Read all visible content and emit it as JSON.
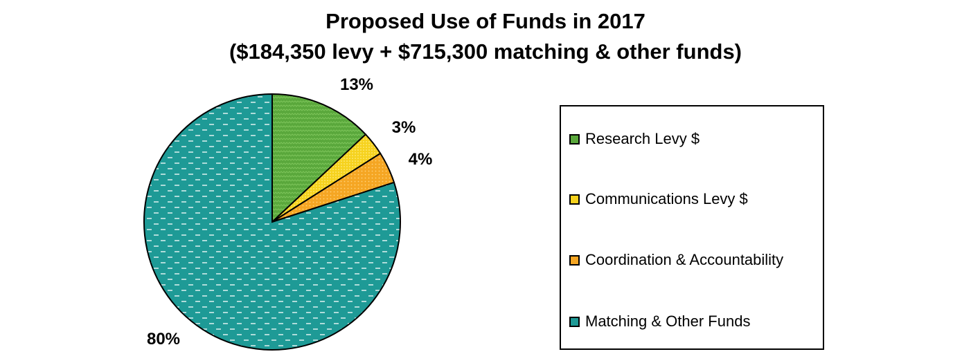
{
  "chart_data": {
    "type": "pie",
    "title": "Proposed Use of Funds in 2017",
    "subtitle": "($184,350 levy + $715,300 matching & other funds)",
    "start_angle_deg": 0,
    "direction": "clockwise",
    "slices": [
      {
        "label": "Research Levy $",
        "value": 13,
        "value_label": "13%",
        "color": "#5aa83c"
      },
      {
        "label": "Communications Levy $",
        "value": 3,
        "value_label": "3%",
        "color": "#f6d21e"
      },
      {
        "label": "Coordination & Accountability",
        "value": 4,
        "value_label": "4%",
        "color": "#f5a623"
      },
      {
        "label": "Matching & Other Funds",
        "value": 80,
        "value_label": "80%",
        "color": "#1e9a96"
      }
    ],
    "legend_position": "right"
  }
}
